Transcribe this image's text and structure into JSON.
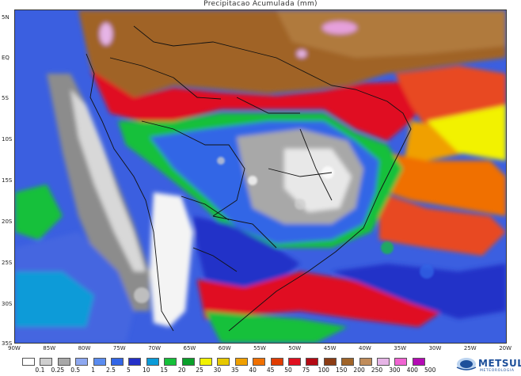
{
  "title": "Precipitacao Acumulada (mm)",
  "lat_labels": [
    "5N",
    "EQ",
    "5S",
    "10S",
    "15S",
    "20S",
    "25S",
    "30S",
    "35S"
  ],
  "lon_labels": [
    "90W",
    "85W",
    "80W",
    "75W",
    "70W",
    "65W",
    "60W",
    "55W",
    "50W",
    "45W",
    "40W",
    "35W",
    "30W",
    "25W",
    "20W"
  ],
  "legend": {
    "labels": [
      "0.1",
      "0.25",
      "0.5",
      "1",
      "2.5",
      "5",
      "10",
      "15",
      "20",
      "25",
      "30",
      "35",
      "40",
      "45",
      "50",
      "75",
      "100",
      "150",
      "200",
      "250",
      "300",
      "400",
      "500"
    ],
    "colors": [
      "#ffffff",
      "#cfcfcf",
      "#a8a8a8",
      "#8ea8f0",
      "#5a8cf0",
      "#3366e6",
      "#2430c8",
      "#0a9bd8",
      "#15c03a",
      "#0aa02a",
      "#f2f200",
      "#e6c800",
      "#f0a000",
      "#f07000",
      "#e03c00",
      "#e01020",
      "#b40a14",
      "#8c3c14",
      "#a06428",
      "#c08c5a",
      "#e6b4e6",
      "#f064d2",
      "#b40ab4"
    ]
  },
  "brand": {
    "name": "METSUL",
    "subtitle": "METEOROLOGIA"
  },
  "colors": {
    "ocean_base": "#3a5bd8",
    "dry_brown": "#a0642a",
    "wet_red": "#e01020"
  }
}
